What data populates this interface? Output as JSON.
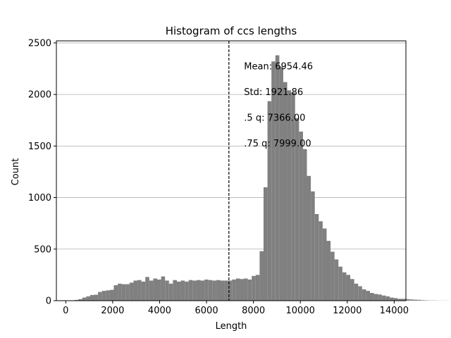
{
  "chart_data": {
    "type": "bar",
    "title": "Histogram of ccs lengths",
    "xlabel": "Length",
    "ylabel": "Count",
    "xlim": [
      -400,
      14500
    ],
    "ylim": [
      0,
      2520
    ],
    "xticks": [
      0,
      2000,
      4000,
      6000,
      8000,
      10000,
      12000,
      14000
    ],
    "xtick_labels": [
      "0",
      "2000",
      "4000",
      "6000",
      "8000",
      "10000",
      "12000",
      "14000"
    ],
    "yticks": [
      0,
      500,
      1000,
      1500,
      2000,
      2500
    ],
    "ytick_labels": [
      "0",
      "500",
      "1000",
      "1500",
      "2000",
      "2500"
    ],
    "grid": "horizontal",
    "bin_start": 200,
    "bin_width": 168,
    "values": [
      3,
      7,
      15,
      30,
      42,
      55,
      58,
      85,
      95,
      100,
      105,
      150,
      165,
      160,
      160,
      175,
      195,
      200,
      185,
      230,
      195,
      215,
      205,
      235,
      195,
      165,
      200,
      185,
      195,
      185,
      200,
      195,
      200,
      195,
      205,
      200,
      195,
      200,
      195,
      195,
      195,
      205,
      215,
      210,
      215,
      205,
      240,
      250,
      480,
      1100,
      1935,
      2320,
      2380,
      2270,
      2120,
      2040,
      2020,
      1770,
      1640,
      1470,
      1210,
      1060,
      840,
      770,
      700,
      580,
      475,
      400,
      330,
      275,
      250,
      210,
      165,
      140,
      110,
      95,
      75,
      65,
      60,
      50,
      42,
      30,
      25,
      18,
      18,
      15,
      12,
      10,
      8,
      5,
      3,
      2,
      2,
      1,
      1,
      1
    ],
    "bar_color": "#808080",
    "mean_line": 6954.46,
    "annotations": [
      {
        "text": "Mean: 6954.46",
        "x": 7600,
        "y": 2245
      },
      {
        "text": "Std: 1921.86",
        "x": 7600,
        "y": 1995
      },
      {
        "text": ".5 q: 7366.00",
        "x": 7600,
        "y": 1745
      },
      {
        "text": ".75 q: 7999.00",
        "x": 7600,
        "y": 1495
      }
    ]
  }
}
